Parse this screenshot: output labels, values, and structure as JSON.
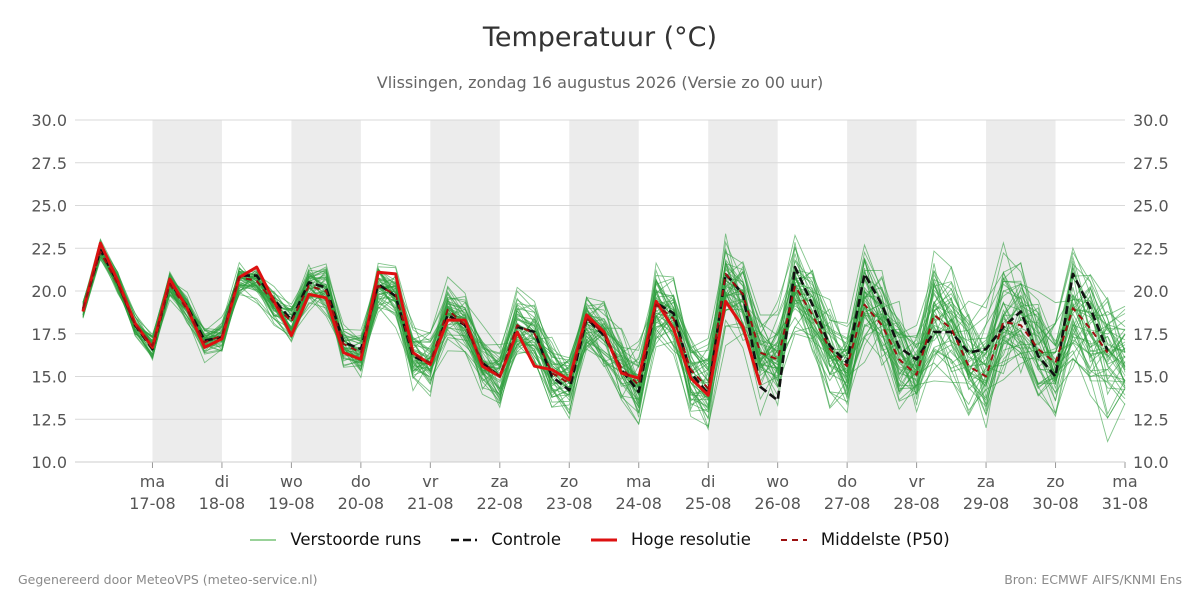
{
  "header": {
    "title": "Temperatuur (°C)",
    "subtitle": "Vlissingen, zondag 16 augustus 2026 (Versie zo 00 uur)"
  },
  "legend": {
    "items": [
      {
        "label": "Verstoorde runs",
        "color": "#5cb85c",
        "style": "thin-solid"
      },
      {
        "label": "Controle",
        "color": "#111111",
        "style": "dashed"
      },
      {
        "label": "Hoge resolutie",
        "color": "#dd1111",
        "style": "thick-solid"
      },
      {
        "label": "Middelste (P50)",
        "color": "#9b1010",
        "style": "dashed"
      }
    ]
  },
  "footer": {
    "left": "Gegenereerd door MeteoVPS (meteo-service.nl)",
    "right": "Bron: ECMWF AIFS/KNMI Ens"
  },
  "chart_data": {
    "type": "line",
    "x_unit": "hours since 16-08 00:00",
    "x_range": [
      0,
      360
    ],
    "ylim": [
      10,
      30
    ],
    "y_ticks": [
      "10.0",
      "12.5",
      "15.0",
      "17.5",
      "20.0",
      "22.5",
      "25.0",
      "27.5",
      "30.0"
    ],
    "grid": true,
    "night_shading": "alternating days shaded",
    "x_ticks": [
      {
        "hour": 24,
        "day": "ma",
        "date": "17-08"
      },
      {
        "hour": 48,
        "day": "di",
        "date": "18-08"
      },
      {
        "hour": 72,
        "day": "wo",
        "date": "19-08"
      },
      {
        "hour": 96,
        "day": "do",
        "date": "20-08"
      },
      {
        "hour": 120,
        "day": "vr",
        "date": "21-08"
      },
      {
        "hour": 144,
        "day": "za",
        "date": "22-08"
      },
      {
        "hour": 168,
        "day": "zo",
        "date": "23-08"
      },
      {
        "hour": 192,
        "day": "ma",
        "date": "24-08"
      },
      {
        "hour": 216,
        "day": "di",
        "date": "25-08"
      },
      {
        "hour": 240,
        "day": "wo",
        "date": "26-08"
      },
      {
        "hour": 264,
        "day": "do",
        "date": "27-08"
      },
      {
        "hour": 288,
        "day": "vr",
        "date": "28-08"
      },
      {
        "hour": 312,
        "day": "za",
        "date": "29-08"
      },
      {
        "hour": 336,
        "day": "zo",
        "date": "30-08"
      },
      {
        "hour": 360,
        "day": "ma",
        "date": "31-08"
      }
    ],
    "shaded_days": [
      [
        24,
        48
      ],
      [
        72,
        96
      ],
      [
        120,
        144
      ],
      [
        168,
        192
      ],
      [
        216,
        240
      ],
      [
        264,
        288
      ],
      [
        312,
        336
      ]
    ],
    "series": [
      {
        "name": "Hoge resolutie",
        "x": [
          0,
          6,
          12,
          18,
          24,
          30,
          36,
          42,
          48,
          54,
          60,
          66,
          72,
          78,
          84,
          90,
          96,
          102,
          108,
          114,
          120,
          126,
          132,
          138,
          144,
          150,
          156,
          162,
          168,
          174,
          180,
          186,
          192,
          198,
          204,
          210,
          216,
          222,
          228,
          234,
          240
        ],
        "y": [
          18.8,
          22.8,
          20.6,
          18.1,
          16.7,
          20.7,
          19.0,
          16.7,
          17.2,
          20.8,
          21.4,
          19.4,
          17.4,
          19.8,
          19.6,
          16.4,
          16.0,
          21.1,
          21.0,
          16.4,
          15.7,
          18.3,
          18.3,
          15.6,
          15.0,
          17.6,
          15.6,
          15.4,
          14.8,
          18.6,
          17.6,
          15.2,
          14.9,
          19.4,
          17.8,
          14.9,
          13.9,
          19.4,
          17.9,
          14.5,
          null
        ]
      },
      {
        "name": "Controle",
        "x": [
          0,
          6,
          12,
          18,
          24,
          30,
          36,
          42,
          48,
          54,
          60,
          66,
          72,
          78,
          84,
          90,
          96,
          102,
          108,
          114,
          120,
          126,
          132,
          138,
          144,
          150,
          156,
          162,
          168,
          174,
          180,
          186,
          192,
          198,
          204,
          210,
          216,
          222,
          228,
          234,
          240,
          246,
          252,
          258,
          264,
          270,
          276,
          282,
          288,
          294,
          300,
          306,
          312,
          318,
          324,
          330,
          336,
          342,
          348,
          354,
          360
        ],
        "y": [
          18.9,
          22.4,
          20.5,
          18.0,
          16.6,
          20.5,
          19.1,
          17.1,
          17.3,
          20.9,
          20.9,
          19.5,
          18.3,
          20.5,
          20.2,
          17.0,
          16.6,
          20.4,
          19.7,
          16.2,
          15.7,
          18.6,
          18.0,
          15.8,
          15.0,
          17.9,
          17.6,
          15.0,
          14.2,
          18.4,
          17.4,
          15.4,
          14.1,
          19.3,
          18.7,
          15.2,
          14.0,
          21.0,
          19.8,
          14.4,
          13.6,
          21.4,
          19.2,
          16.8,
          15.8,
          21.0,
          19.2,
          16.7,
          16.0,
          17.6,
          17.6,
          16.4,
          16.6,
          17.9,
          18.8,
          16.2,
          15.0,
          21.0,
          19.0,
          16.5,
          null
        ]
      },
      {
        "name": "Middelste (P50)",
        "x": [
          0,
          6,
          12,
          18,
          24,
          30,
          36,
          42,
          48,
          54,
          60,
          66,
          72,
          78,
          84,
          90,
          96,
          102,
          108,
          114,
          120,
          126,
          132,
          138,
          144,
          150,
          156,
          162,
          168,
          174,
          180,
          186,
          192,
          198,
          204,
          210,
          216,
          222,
          228,
          234,
          240,
          246,
          252,
          258,
          264,
          270,
          276,
          282,
          288,
          294,
          300,
          306,
          312,
          318,
          324,
          330,
          336,
          342,
          348,
          354,
          360
        ],
        "y": [
          19.0,
          22.3,
          20.4,
          18.0,
          16.8,
          20.4,
          18.9,
          17.0,
          17.4,
          20.8,
          20.6,
          19.3,
          18.2,
          20.3,
          20.0,
          16.9,
          16.4,
          20.3,
          19.8,
          16.3,
          15.8,
          18.9,
          18.0,
          15.8,
          15.0,
          18.0,
          17.5,
          15.2,
          14.6,
          18.4,
          17.5,
          15.5,
          14.5,
          19.2,
          18.4,
          15.4,
          14.3,
          21.0,
          19.8,
          16.4,
          16.0,
          20.3,
          18.6,
          16.6,
          15.6,
          19.2,
          18.0,
          16.0,
          15.1,
          18.6,
          17.8,
          15.6,
          15.0,
          18.2,
          18.0,
          16.6,
          15.8,
          19.0,
          17.8,
          16.4,
          null
        ]
      }
    ],
    "ensemble": {
      "name": "Verstoorde runs",
      "x_step_hours": 6,
      "members": 50,
      "center": [
        18.9,
        22.4,
        20.5,
        18.0,
        16.8,
        20.4,
        19.0,
        17.0,
        17.3,
        20.7,
        20.6,
        19.3,
        18.2,
        20.3,
        20.0,
        16.9,
        16.4,
        20.3,
        19.7,
        16.3,
        15.8,
        18.8,
        18.0,
        15.8,
        15.0,
        18.0,
        17.5,
        15.3,
        14.6,
        18.4,
        17.5,
        15.5,
        14.6,
        19.2,
        18.4,
        15.4,
        14.4,
        20.5,
        19.5,
        16.3,
        15.8,
        20.2,
        18.6,
        16.6,
        15.6,
        19.3,
        18.1,
        16.1,
        15.2,
        18.6,
        17.8,
        15.7,
        15.1,
        18.3,
        18.0,
        16.6,
        15.8,
        19.0,
        17.9,
        16.4,
        15.9
      ]
    }
  }
}
